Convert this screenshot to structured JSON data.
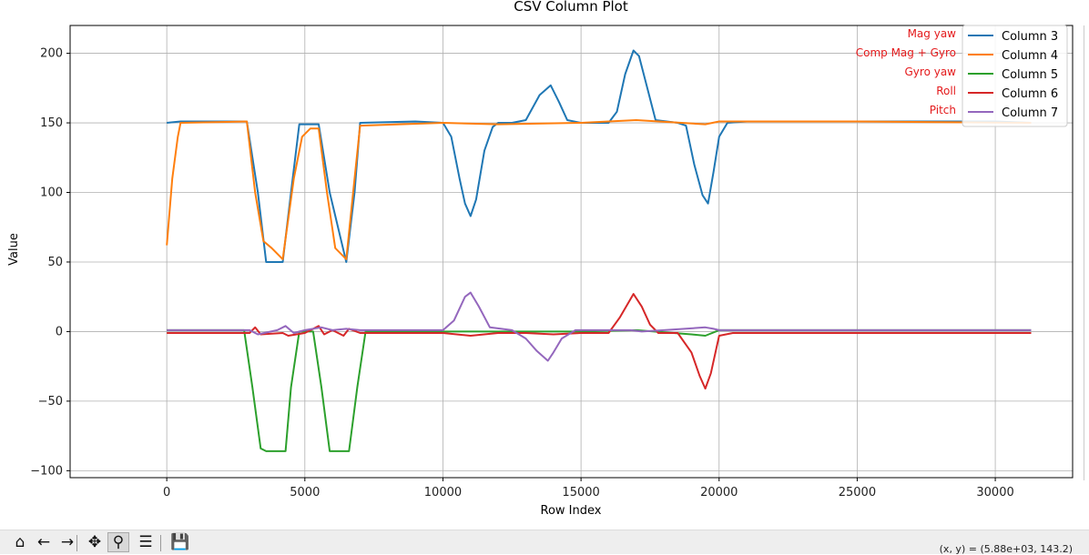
{
  "window": {
    "coord_readout": "(x, y) = (5.88e+03, 143.2)"
  },
  "toolbar": {
    "buttons": [
      {
        "name": "home-button",
        "icon": "home-icon",
        "glyph": "⌂",
        "active": false
      },
      {
        "name": "back-button",
        "icon": "arrow-left-icon",
        "glyph": "←",
        "active": false
      },
      {
        "name": "forward-button",
        "icon": "arrow-right-icon",
        "glyph": "→",
        "active": false
      },
      {
        "name": "pan-button",
        "icon": "move-icon",
        "glyph": "✥",
        "active": false
      },
      {
        "name": "zoom-button",
        "icon": "magnifier-icon",
        "glyph": "⚲",
        "active": true
      },
      {
        "name": "configure-subplots-button",
        "icon": "sliders-icon",
        "glyph": "☰",
        "active": false
      },
      {
        "name": "save-button",
        "icon": "floppy-disk-icon",
        "glyph": "💾",
        "active": false
      }
    ]
  },
  "chart_data": {
    "type": "line",
    "title": "CSV Column Plot",
    "xlabel": "Row Index",
    "ylabel": "Value",
    "xlim": [
      -3500,
      32800
    ],
    "ylim": [
      -105,
      220
    ],
    "xticks": [
      0,
      5000,
      10000,
      15000,
      20000,
      25000,
      30000
    ],
    "yticks": [
      -100,
      -50,
      0,
      50,
      100,
      150,
      200
    ],
    "ytick_labels": [
      "−100",
      "−50",
      "0",
      "50",
      "100",
      "150",
      "200"
    ],
    "grid": true,
    "legend_position": "top-right",
    "annotations": [
      "Mag yaw",
      "Comp Mag + Gyro",
      "Gyro yaw",
      "Roll",
      "Pitch"
    ],
    "series": [
      {
        "name": "Column 3",
        "color": "#1f77b4",
        "x": [
          0,
          500,
          2900,
          3300,
          3600,
          4200,
          4500,
          4800,
          5500,
          5900,
          6500,
          6800,
          7000,
          9000,
          10000,
          10300,
          10600,
          10800,
          11000,
          11200,
          11500,
          11800,
          12000,
          12500,
          13000,
          13500,
          13900,
          14200,
          14500,
          15000,
          16000,
          16300,
          16600,
          16900,
          17100,
          17400,
          17700,
          18500,
          18800,
          19100,
          19400,
          19600,
          19800,
          20000,
          20300,
          21000,
          25000,
          30000,
          31300
        ],
        "values": [
          150,
          151,
          151,
          100,
          50,
          50,
          100,
          149,
          149,
          100,
          50,
          100,
          150,
          151,
          150,
          140,
          110,
          92,
          83,
          95,
          130,
          147,
          150,
          150,
          152,
          170,
          177,
          165,
          152,
          150,
          150,
          158,
          185,
          202,
          198,
          175,
          152,
          150,
          148,
          120,
          98,
          92,
          115,
          140,
          150,
          151,
          151,
          151,
          150
        ]
      },
      {
        "name": "Column 4",
        "color": "#ff7f0e",
        "x": [
          0,
          200,
          400,
          500,
          2900,
          3200,
          3500,
          3800,
          4200,
          4600,
          4900,
          5200,
          5500,
          5800,
          6100,
          6500,
          6800,
          7000,
          10000,
          12000,
          15000,
          17000,
          19500,
          20000,
          25000,
          31300
        ],
        "values": [
          62,
          110,
          140,
          150,
          151,
          100,
          65,
          60,
          52,
          110,
          140,
          146,
          146,
          100,
          60,
          52,
          110,
          148,
          150,
          149,
          150,
          152,
          149,
          151,
          151,
          150
        ]
      },
      {
        "name": "Column 5",
        "color": "#2ca02c",
        "x": [
          0,
          2800,
          3100,
          3400,
          3600,
          4300,
          4500,
          4800,
          5300,
          5600,
          5900,
          6600,
          6900,
          7200,
          11000,
          15000,
          17000,
          19000,
          19500,
          20000,
          31300
        ],
        "values": [
          1,
          1,
          -40,
          -84,
          -86,
          -86,
          -40,
          0,
          0,
          -40,
          -86,
          -86,
          -40,
          0,
          0,
          0,
          1,
          -2,
          -3,
          1,
          1
        ]
      },
      {
        "name": "Column 6",
        "color": "#d62728",
        "x": [
          0,
          3000,
          3200,
          3400,
          4200,
          4400,
          5000,
          5500,
          5700,
          6000,
          6400,
          6600,
          7000,
          10000,
          11000,
          12000,
          13000,
          14000,
          15000,
          16000,
          16400,
          16900,
          17200,
          17500,
          17800,
          18500,
          19000,
          19300,
          19500,
          19700,
          20000,
          20500,
          30000,
          31300
        ],
        "values": [
          -1,
          -1,
          3,
          -2,
          -1,
          -3,
          -1,
          4,
          -2,
          1,
          -3,
          2,
          -1,
          -1,
          -3,
          -1,
          -1,
          -2,
          -1,
          -1,
          10,
          27,
          18,
          5,
          -1,
          -1,
          -15,
          -32,
          -41,
          -30,
          -3,
          -1,
          -1,
          -1
        ]
      },
      {
        "name": "Column 7",
        "color": "#9467bd",
        "x": [
          0,
          3000,
          3300,
          4000,
          4300,
          4600,
          5000,
          5600,
          6000,
          6500,
          7000,
          10000,
          10400,
          10800,
          11000,
          11300,
          11700,
          12500,
          13000,
          13400,
          13800,
          14000,
          14300,
          14800,
          15500,
          16800,
          17200,
          18000,
          19500,
          19800,
          20000,
          25000,
          30000,
          31300
        ],
        "values": [
          1,
          1,
          -2,
          1,
          4,
          -1,
          1,
          3,
          1,
          2,
          1,
          1,
          8,
          25,
          28,
          18,
          3,
          1,
          -5,
          -14,
          -21,
          -15,
          -5,
          1,
          1,
          1,
          0,
          1,
          3,
          2,
          1,
          1,
          1,
          1
        ]
      }
    ]
  }
}
